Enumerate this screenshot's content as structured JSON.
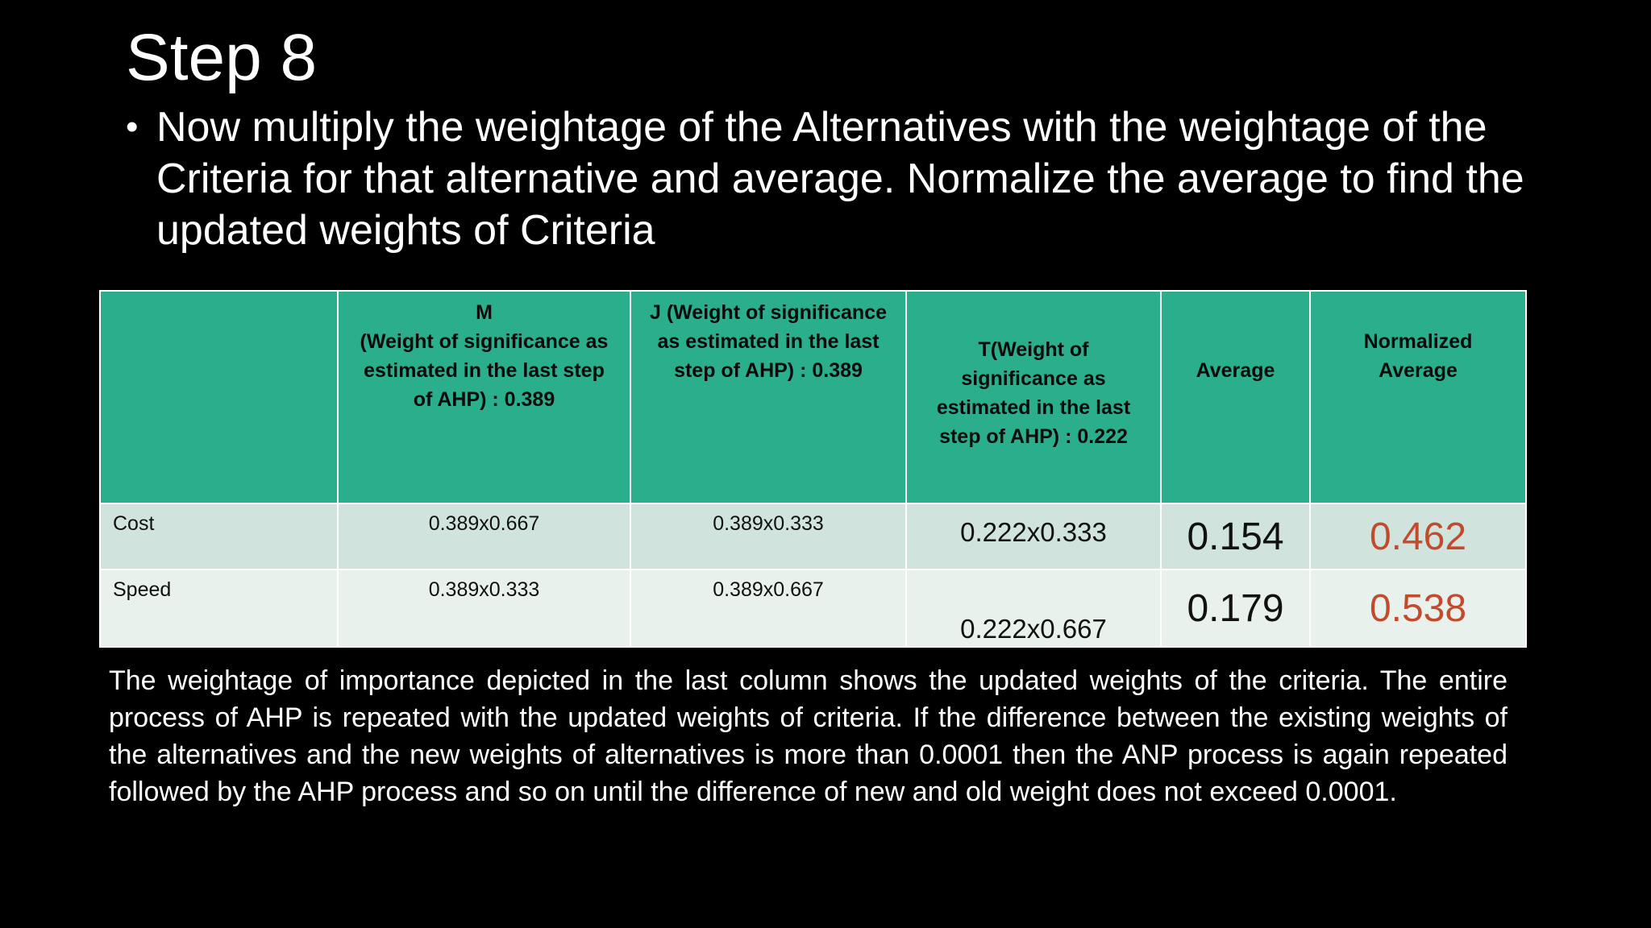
{
  "slide": {
    "title": "Step 8",
    "bullet": "Now multiply the weightage of the Alternatives with the weightage of the Criteria for that alternative and average. Normalize the average to find the updated weights of Criteria",
    "paragraph": "The weightage of importance depicted in the last column shows the updated weights of the criteria. The entire process of AHP is repeated with the updated weights of criteria. If the difference between the existing weights of the alternatives and the new weights of alternatives is more than 0.0001 then the ANP process is again repeated followed by the AHP process and so on until the difference of new and old weight does not exceed 0.0001."
  },
  "table": {
    "headers": {
      "blank": "",
      "m_line1": "M",
      "m_line2": "(Weight of significance as estimated in the last step of AHP) : 0.389",
      "j": "J (Weight of significance as estimated in the last step of AHP) : 0.389",
      "t": "T(Weight of significance as estimated in the last step of AHP) : 0.222",
      "average": "Average",
      "normalized": "Normalized Average"
    },
    "rows": [
      {
        "label": "Cost",
        "m": "0.389x0.667",
        "j": "0.389x0.333",
        "t": "0.222x0.333",
        "average": "0.154",
        "normalized": "0.462"
      },
      {
        "label": "Speed",
        "m": "0.389x0.333",
        "j": "0.389x0.667",
        "t": "0.222x0.667",
        "average": "0.179",
        "normalized": "0.538"
      }
    ]
  },
  "colors": {
    "background": "#000000",
    "header_fill": "#2bae8c",
    "row_a_fill": "#d0e4dd",
    "row_b_fill": "#e9f1ed",
    "normalized_text": "#c24a2d"
  }
}
